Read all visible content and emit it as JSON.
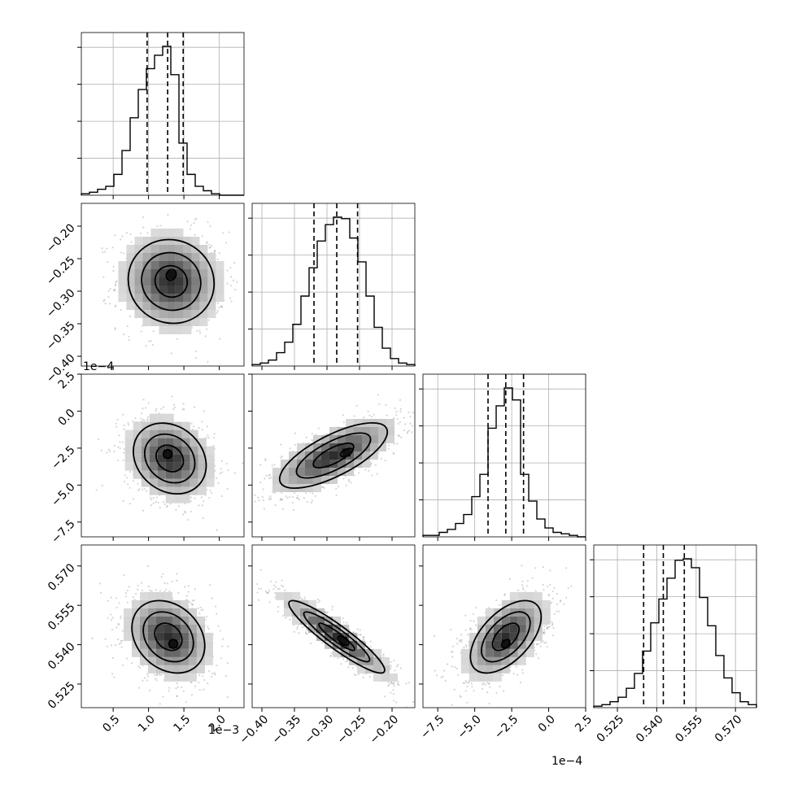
{
  "chart_data": {
    "type": "corner",
    "style": {
      "grid": true,
      "hist_color": "#000000",
      "contour_color": "#000000",
      "quantile_style": "dashed"
    },
    "parameters": [
      {
        "range": [
          0.05,
          2.35
        ],
        "ticks": [
          0.5,
          1.0,
          1.5,
          2.0
        ],
        "tick_labels": [
          "0.5",
          "1.0",
          "1.5",
          "2.0"
        ],
        "offset_text": "1e−3",
        "quantiles": [
          0.98,
          1.27,
          1.49
        ],
        "hist": {
          "start": 0.05,
          "step": 0.115,
          "counts": [
            1,
            2,
            4,
            6,
            14,
            30,
            52,
            71,
            85,
            94,
            100,
            81,
            35,
            14,
            6,
            3,
            1,
            0,
            0,
            0
          ]
        },
        "blob": {
          "cx": 1.32,
          "cy": -0.285,
          "rx": 0.4,
          "ry": 0.07,
          "rot": 0,
          "core": [
            1.35,
            -0.278
          ]
        }
      },
      {
        "range": [
          -0.415,
          -0.165
        ],
        "ticks": [
          -0.4,
          -0.35,
          -0.3,
          -0.25,
          -0.2
        ],
        "tick_labels": [
          "−0.40",
          "−0.35",
          "−0.30",
          "−0.25",
          "−0.20"
        ],
        "offset_text": "",
        "quantiles": [
          -0.32,
          -0.285,
          -0.253
        ],
        "hist": {
          "start": -0.415,
          "step": 0.0125,
          "counts": [
            1,
            2,
            4,
            9,
            16,
            28,
            47,
            66,
            84,
            95,
            100,
            99,
            86,
            70,
            47,
            26,
            12,
            5,
            2,
            1
          ]
        },
        "blob": {
          "cx": -0.285,
          "cy": -3.0,
          "rx": 0.05,
          "ry": 2.0,
          "rot": 25,
          "core": [
            -0.275,
            -2.8
          ]
        }
      },
      {
        "range": [
          -8.5,
          2.5
        ],
        "ticks": [
          -7.5,
          -5.0,
          -2.5,
          0.0,
          2.5
        ],
        "tick_labels": [
          "−7.5",
          "−5.0",
          "−2.5",
          "0.0",
          "2.5"
        ],
        "offset_text": "1e−4",
        "quantiles": [
          -4.1,
          -2.9,
          -1.7
        ],
        "hist": {
          "start": -8.5,
          "step": 0.55,
          "counts": [
            1,
            1,
            3,
            5,
            9,
            15,
            27,
            42,
            73,
            88,
            100,
            92,
            42,
            24,
            12,
            6,
            3,
            2,
            1,
            0
          ]
        },
        "blob": {
          "cx": -2.9,
          "cy": 0.541,
          "rx": 2.0,
          "ry": 0.009,
          "rot": 30,
          "core": [
            -2.9,
            0.5405
          ]
        }
      },
      {
        "range": [
          0.516,
          0.578
        ],
        "ticks": [
          0.525,
          0.54,
          0.555,
          0.57
        ],
        "tick_labels": [
          "0.525",
          "0.540",
          "0.555",
          "0.570"
        ],
        "offset_text": "",
        "quantiles": [
          0.535,
          0.5425,
          0.5505
        ],
        "hist": {
          "start": 0.516,
          "step": 0.0031,
          "counts": [
            1,
            2,
            4,
            7,
            13,
            23,
            38,
            57,
            73,
            87,
            99,
            100,
            94,
            74,
            55,
            35,
            20,
            10,
            4,
            2
          ]
        },
        "blob": {
          "cx": 1.3,
          "cy": 0.542,
          "rx": 0.35,
          "ry": 0.009,
          "rot": 0,
          "core": [
            1.38,
            0.5403
          ]
        }
      }
    ],
    "pairs": [
      {
        "x": 0,
        "y": 1,
        "cx": 1.32,
        "cy": -0.285,
        "sx": 0.33,
        "sy": 0.035,
        "rho": -0.05,
        "peak": [
          1.32,
          -0.275
        ]
      },
      {
        "x": 0,
        "y": 2,
        "cx": 1.3,
        "cy": -3.2,
        "sx": 0.28,
        "sy": 1.3,
        "rho": -0.2,
        "peak": [
          1.27,
          -2.9
        ]
      },
      {
        "x": 1,
        "y": 2,
        "cx": -0.29,
        "cy": -3.0,
        "sx": 0.045,
        "sy": 1.2,
        "rho": 0.72,
        "peak": [
          -0.27,
          -2.8
        ]
      },
      {
        "x": 0,
        "y": 3,
        "cx": 1.28,
        "cy": 0.543,
        "sx": 0.28,
        "sy": 0.0075,
        "rho": -0.25,
        "peak": [
          1.35,
          0.5403
        ]
      },
      {
        "x": 1,
        "y": 3,
        "cx": -0.285,
        "cy": 0.543,
        "sx": 0.04,
        "sy": 0.0075,
        "rho": -0.92,
        "peak": [
          -0.275,
          0.5415
        ]
      },
      {
        "x": 2,
        "y": 3,
        "cx": -2.9,
        "cy": 0.543,
        "sx": 1.3,
        "sy": 0.0075,
        "rho": 0.55,
        "peak": [
          -2.9,
          0.5404
        ]
      }
    ]
  }
}
